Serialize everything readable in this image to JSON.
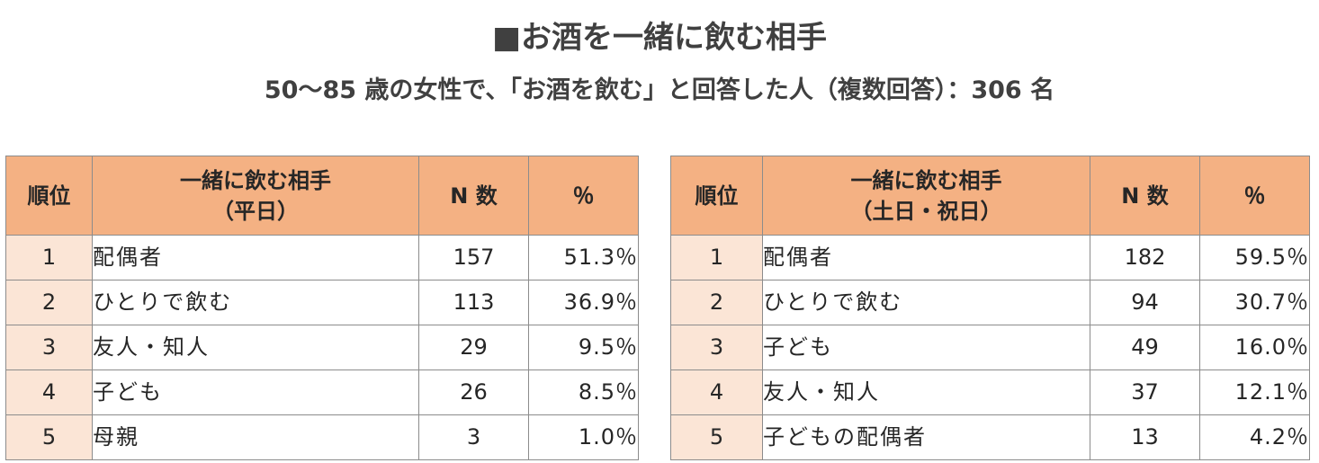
{
  "title": "■お酒を一緒に飲む相手",
  "subtitle": "50～85 歳の女性で、「お酒を飲む」と回答した人（複数回答）：306 名",
  "colors": {
    "header_bg": "#f4b183",
    "rank_bg": "#fbe5d6",
    "text": "#404040",
    "border": "#8c8c8c"
  },
  "tables": [
    {
      "headers": {
        "rank": "順位",
        "partner_line1": "一緒に飲む相手",
        "partner_line2": "（平日）",
        "n": "N 数",
        "pct": "％"
      },
      "rows": [
        {
          "rank": "1",
          "partner": "配偶者",
          "n": "157",
          "pct": "51.3％"
        },
        {
          "rank": "2",
          "partner": "ひとりで飲む",
          "n": "113",
          "pct": "36.9％"
        },
        {
          "rank": "3",
          "partner": "友人・知人",
          "n": "29",
          "pct": "9.5％"
        },
        {
          "rank": "4",
          "partner": "子ども",
          "n": "26",
          "pct": "8.5％"
        },
        {
          "rank": "5",
          "partner": "母親",
          "n": "3",
          "pct": "1.0％"
        }
      ]
    },
    {
      "headers": {
        "rank": "順位",
        "partner_line1": "一緒に飲む相手",
        "partner_line2": "（土日・祝日）",
        "n": "N 数",
        "pct": "％"
      },
      "rows": [
        {
          "rank": "1",
          "partner": "配偶者",
          "n": "182",
          "pct": "59.5％"
        },
        {
          "rank": "2",
          "partner": "ひとりで飲む",
          "n": "94",
          "pct": "30.7％"
        },
        {
          "rank": "3",
          "partner": "子ども",
          "n": "49",
          "pct": "16.0％"
        },
        {
          "rank": "4",
          "partner": "友人・知人",
          "n": "37",
          "pct": "12.1％"
        },
        {
          "rank": "5",
          "partner": "子どもの配偶者",
          "n": "13",
          "pct": "4.2％"
        }
      ]
    }
  ]
}
